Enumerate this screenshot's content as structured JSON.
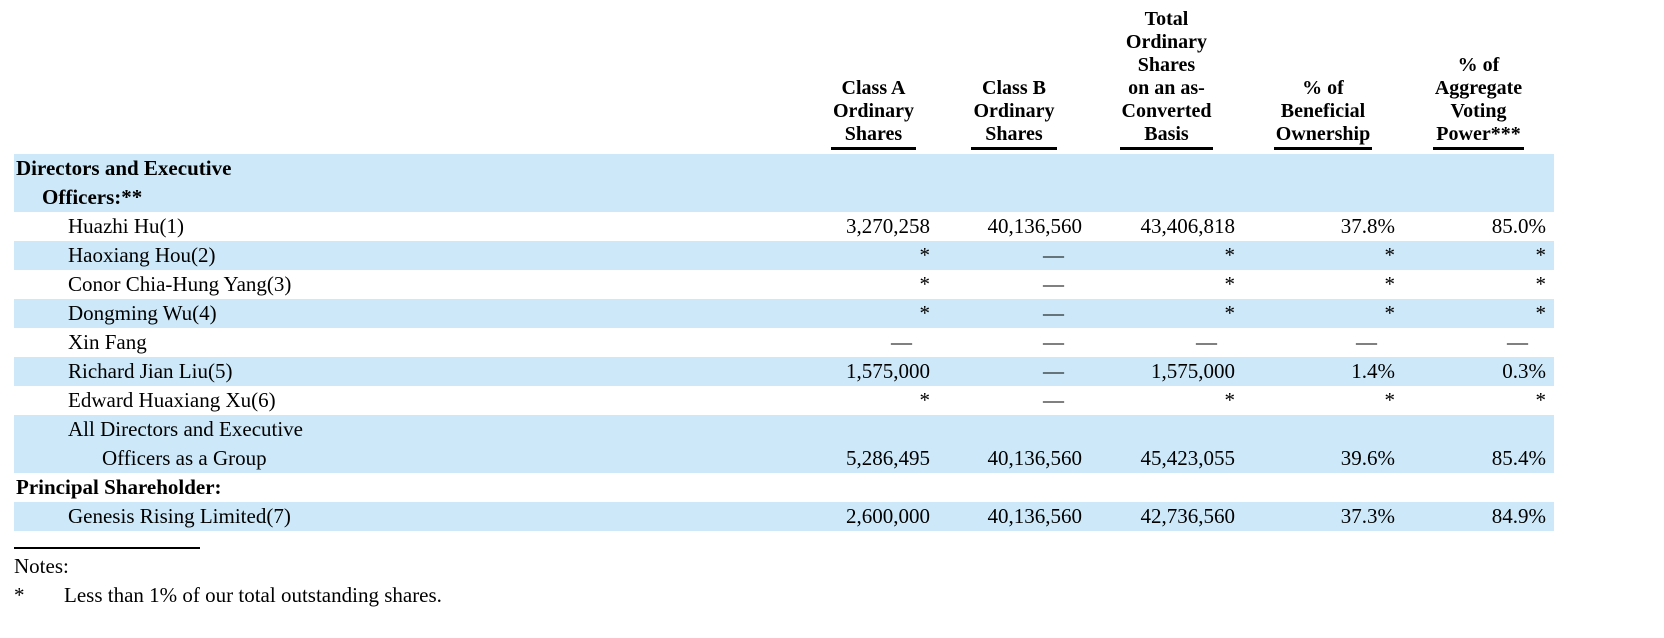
{
  "colors": {
    "row_shade": "#cde9f9",
    "text": "#000000",
    "background": "#ffffff"
  },
  "table": {
    "columns": [
      {
        "id": "class-a",
        "label": "Class A Ordinary Shares",
        "lines": [
          "Class A",
          "Ordinary",
          "Shares"
        ]
      },
      {
        "id": "class-b",
        "label": "Class B Ordinary Shares",
        "lines": [
          "Class B",
          "Ordinary",
          "Shares"
        ]
      },
      {
        "id": "total-ordinary",
        "label": "Total Ordinary Shares on an as-Converted Basis",
        "lines": [
          "Total",
          "Ordinary",
          "Shares",
          "on an as-",
          "Converted",
          "Basis"
        ]
      },
      {
        "id": "pct-beneficial",
        "label": "% of Beneficial Ownership",
        "lines": [
          "% of",
          "Beneficial",
          "Ownership"
        ]
      },
      {
        "id": "pct-voting",
        "label": "% of Aggregate Voting Power***",
        "lines": [
          "% of",
          "Aggregate",
          "Voting",
          "Power***"
        ]
      }
    ],
    "rows": [
      {
        "id": "section-directors",
        "section": true,
        "shaded": true,
        "name_lines": [
          {
            "text": "Directors and Executive",
            "indent": 0
          },
          {
            "text": "Officers:**",
            "indent": 1
          }
        ],
        "values": [
          "",
          "",
          "",
          "",
          ""
        ]
      },
      {
        "id": "huazhi-hu",
        "section": false,
        "shaded": false,
        "name_lines": [
          {
            "text": "Huazhi Hu(1)",
            "indent": 2
          }
        ],
        "values": [
          "3,270,258",
          "40,136,560",
          "43,406,818",
          "37.8%",
          "85.0%"
        ]
      },
      {
        "id": "haoxiang-hou",
        "section": false,
        "shaded": true,
        "name_lines": [
          {
            "text": "Haoxiang Hou(2)",
            "indent": 2
          }
        ],
        "values": [
          "*",
          "—",
          "*",
          "*",
          "*"
        ]
      },
      {
        "id": "conor-chia-hung-yang",
        "section": false,
        "shaded": false,
        "name_lines": [
          {
            "text": "Conor Chia-Hung Yang(3)",
            "indent": 2
          }
        ],
        "values": [
          "*",
          "—",
          "*",
          "*",
          "*"
        ]
      },
      {
        "id": "dongming-wu",
        "section": false,
        "shaded": true,
        "name_lines": [
          {
            "text": "Dongming Wu(4)",
            "indent": 2
          }
        ],
        "values": [
          "*",
          "—",
          "*",
          "*",
          "*"
        ]
      },
      {
        "id": "xin-fang",
        "section": false,
        "shaded": false,
        "name_lines": [
          {
            "text": "Xin Fang",
            "indent": 2
          }
        ],
        "values": [
          "—",
          "—",
          "—",
          "—",
          "—"
        ]
      },
      {
        "id": "richard-jian-liu",
        "section": false,
        "shaded": true,
        "name_lines": [
          {
            "text": "Richard Jian Liu(5)",
            "indent": 2
          }
        ],
        "values": [
          "1,575,000",
          "—",
          "1,575,000",
          "1.4%",
          "0.3%"
        ]
      },
      {
        "id": "edward-huaxiang-xu",
        "section": false,
        "shaded": false,
        "name_lines": [
          {
            "text": "Edward Huaxiang Xu(6)",
            "indent": 2
          }
        ],
        "values": [
          "*",
          "—",
          "*",
          "*",
          "*"
        ]
      },
      {
        "id": "all-directors-group",
        "section": false,
        "shaded": true,
        "name_lines": [
          {
            "text": "All Directors and Executive",
            "indent": 2
          },
          {
            "text": "Officers as a Group",
            "indent": 3
          }
        ],
        "values": [
          "5,286,495",
          "40,136,560",
          "45,423,055",
          "39.6%",
          "85.4%"
        ]
      },
      {
        "id": "section-principal",
        "section": true,
        "shaded": false,
        "name_lines": [
          {
            "text": "Principal Shareholder:",
            "indent": 0
          }
        ],
        "values": [
          "",
          "",
          "",
          "",
          ""
        ]
      },
      {
        "id": "genesis-rising-limited",
        "section": false,
        "shaded": true,
        "name_lines": [
          {
            "text": "Genesis Rising Limited(7)",
            "indent": 2
          }
        ],
        "values": [
          "2,600,000",
          "40,136,560",
          "42,736,560",
          "37.3%",
          "84.9%"
        ]
      }
    ]
  },
  "notes": {
    "label": "Notes:",
    "footnotes": [
      {
        "symbol": "*",
        "text": "Less than 1% of our total outstanding shares."
      }
    ]
  }
}
